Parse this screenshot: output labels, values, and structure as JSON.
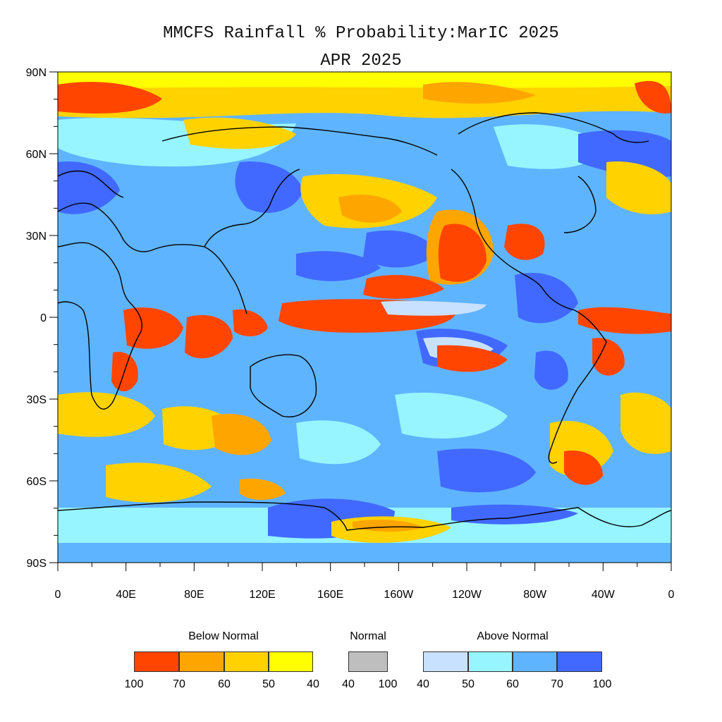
{
  "title": "MMCFS Rainfall % Probability:MarIC 2025",
  "subtitle": "APR 2025",
  "map": {
    "lat_labels": [
      "90N",
      "60N",
      "30N",
      "0",
      "30S",
      "60S",
      "90S"
    ],
    "lon_labels": [
      "0",
      "40E",
      "80E",
      "120E",
      "160E",
      "160W",
      "120W",
      "80W",
      "40W",
      "0"
    ]
  },
  "legend": {
    "below": {
      "heading": "Below Normal",
      "colors": [
        "#ff4500",
        "#ffa500",
        "#ffd200",
        "#ffff00"
      ],
      "labels": [
        "100",
        "70",
        "60",
        "50",
        "40"
      ]
    },
    "normal": {
      "heading": "Normal",
      "colors": [
        "#bebebe"
      ],
      "labels": [
        "40",
        "100"
      ]
    },
    "above": {
      "heading": "Above Normal",
      "colors": [
        "#c8e1ff",
        "#96f5ff",
        "#5fb4ff",
        "#4169ff"
      ],
      "labels": [
        "40",
        "50",
        "60",
        "70",
        "100"
      ]
    }
  },
  "palette": {
    "land_outline": "#000000",
    "frame": "#000000"
  }
}
